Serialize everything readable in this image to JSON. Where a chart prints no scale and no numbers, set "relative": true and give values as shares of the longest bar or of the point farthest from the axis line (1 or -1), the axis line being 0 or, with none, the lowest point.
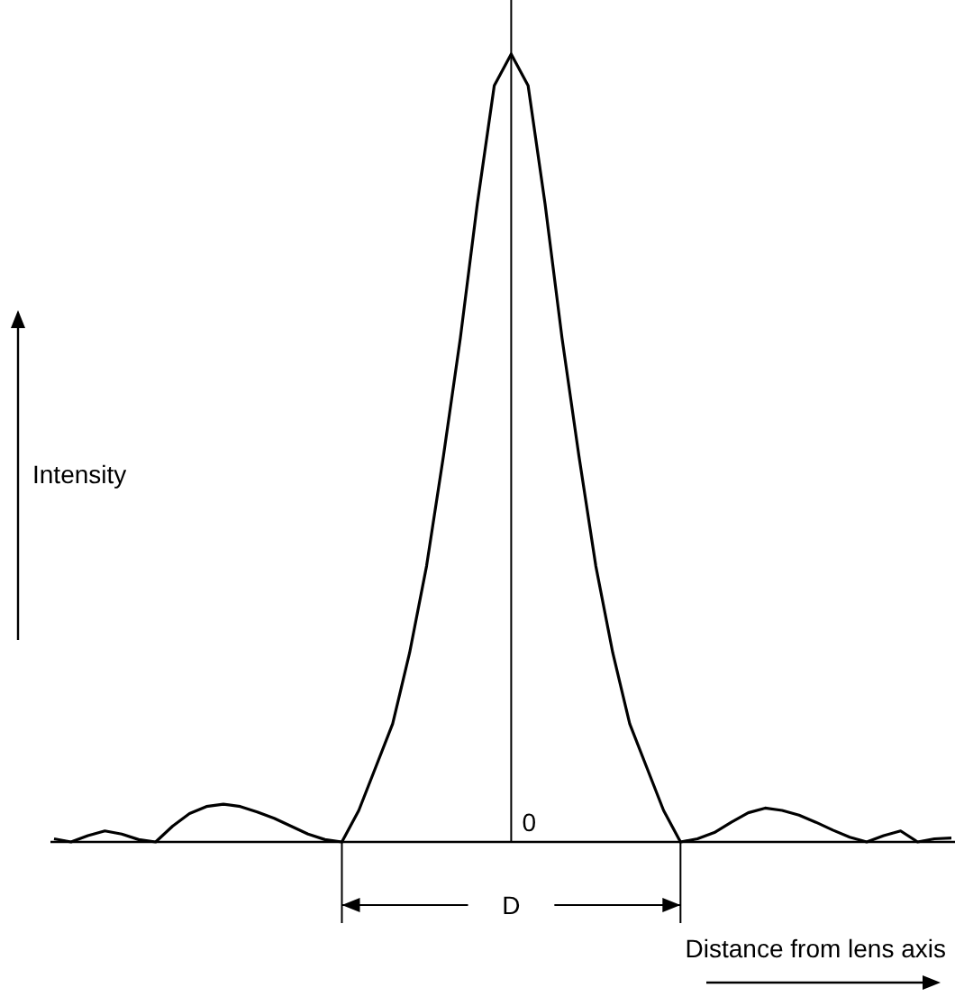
{
  "chart_data": {
    "type": "line",
    "relative": true,
    "xlabel": "Distance from lens axis",
    "ylabel": "Intensity",
    "categories": [
      null,
      null,
      null,
      null,
      null,
      null,
      null,
      null,
      null,
      null,
      null,
      null,
      null,
      null,
      null,
      null,
      null,
      null,
      null,
      null,
      null,
      null,
      null,
      null,
      null,
      null,
      null,
      null,
      null,
      null,
      null,
      null,
      null,
      null,
      null,
      null,
      null,
      null,
      null,
      null,
      null,
      null,
      null,
      null,
      null,
      null,
      null,
      null,
      null,
      null,
      null,
      null,
      null,
      null
    ],
    "values": [
      0.004,
      0,
      0.008,
      0.014,
      0.01,
      0.003,
      0,
      0.02,
      0.036,
      0.045,
      0.048,
      0.045,
      0.038,
      0.03,
      0.02,
      0.01,
      0.003,
      0,
      0.04,
      0.095,
      0.15,
      0.24,
      0.35,
      0.49,
      0.64,
      0.81,
      0.96,
      1,
      0.96,
      0.81,
      0.64,
      0.49,
      0.35,
      0.24,
      0.15,
      0.095,
      0.04,
      0,
      0.004,
      0.012,
      0.025,
      0.037,
      0.043,
      0.04,
      0.034,
      0.025,
      0.015,
      0.006,
      0,
      0.008,
      0.014,
      0,
      0.004,
      0.005
    ],
    "color": "#000000",
    "annotations": [
      "0",
      "D"
    ],
    "legend": false,
    "grid": false
  }
}
